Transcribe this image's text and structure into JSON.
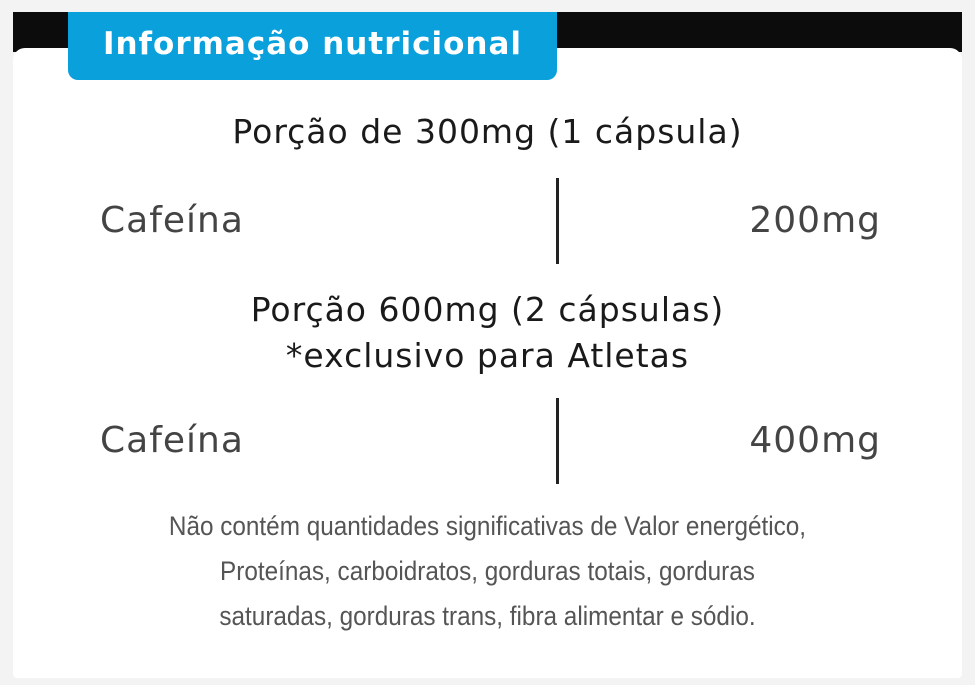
{
  "header": {
    "title": "Informação nutricional",
    "accent_color": "#0aa0dc"
  },
  "sections": [
    {
      "heading": "Porção de 300mg (1 cápsula)",
      "subheading": "",
      "item": {
        "label": "Cafeína",
        "value": "200mg"
      }
    },
    {
      "heading": "Porção 600mg (2 cápsulas)",
      "subheading": "*exclusivo para Atletas",
      "item": {
        "label": "Cafeína",
        "value": "400mg"
      }
    }
  ],
  "footnote": {
    "lines": [
      "Não contém quantidades significativas de Valor energético,",
      "Proteínas, carboidratos, gorduras totais, gorduras",
      "saturadas, gorduras trans, fibra alimentar e sódio."
    ]
  }
}
